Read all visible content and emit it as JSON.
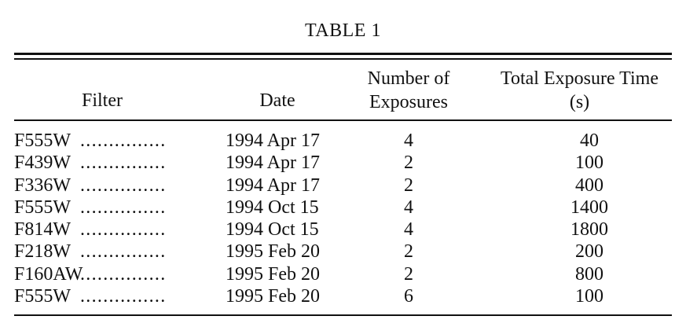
{
  "title": "TABLE 1",
  "headers": {
    "filter": "Filter",
    "date": "Date",
    "num_line1": "Number of",
    "num_line2": "Exposures",
    "exp_line1": "Total Exposure Time",
    "exp_line2": "(s)"
  },
  "leader": "...............",
  "rows": [
    {
      "filter": "F555W",
      "date": "1994 Apr 17",
      "exposures": "4",
      "time": "40"
    },
    {
      "filter": "F439W",
      "date": "1994 Apr 17",
      "exposures": "2",
      "time": "100"
    },
    {
      "filter": "F336W",
      "date": "1994 Apr 17",
      "exposures": "2",
      "time": "400"
    },
    {
      "filter": "F555W",
      "date": "1994 Oct 15",
      "exposures": "4",
      "time": "1400"
    },
    {
      "filter": "F814W",
      "date": "1994 Oct 15",
      "exposures": "4",
      "time": "1800"
    },
    {
      "filter": "F218W",
      "date": "1995 Feb 20",
      "exposures": "2",
      "time": "200"
    },
    {
      "filter": "F160AW",
      "date": "1995 Feb 20",
      "exposures": "2",
      "time": "800"
    },
    {
      "filter": "F555W",
      "date": "1995 Feb 20",
      "exposures": "6",
      "time": "100"
    }
  ]
}
